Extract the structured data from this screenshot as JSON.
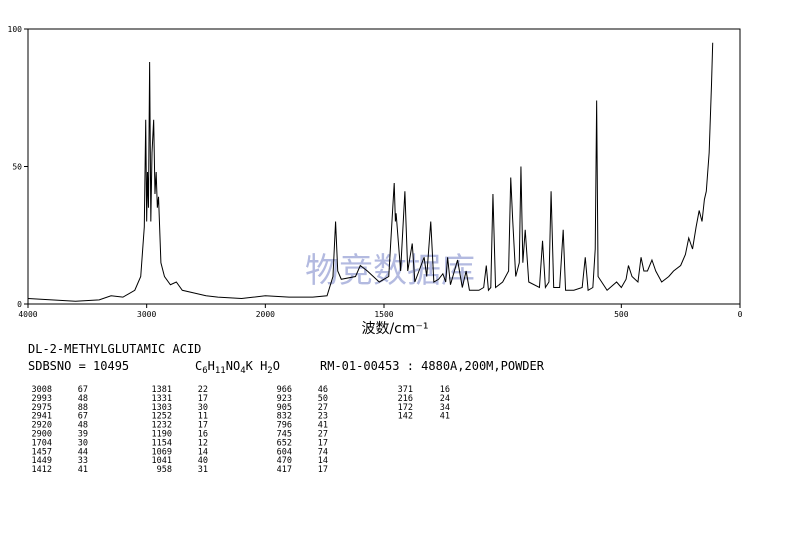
{
  "chart_data": {
    "type": "line",
    "color": "#000000",
    "xlabel": "波数/cm⁻¹",
    "xlim": [
      4000,
      0
    ],
    "x_scale_break": 2000,
    "xticks": [
      4000,
      3000,
      2000,
      1500,
      500,
      0
    ],
    "ylim": [
      0,
      100
    ],
    "yticks": [
      0,
      50,
      100
    ],
    "x": [
      4000,
      3800,
      3600,
      3400,
      3300,
      3200,
      3100,
      3050,
      3020,
      3008,
      3000,
      2993,
      2985,
      2975,
      2965,
      2955,
      2941,
      2930,
      2920,
      2910,
      2900,
      2880,
      2850,
      2800,
      2750,
      2700,
      2600,
      2500,
      2400,
      2200,
      2100,
      2000,
      1900,
      1800,
      1740,
      1715,
      1704,
      1695,
      1680,
      1620,
      1600,
      1570,
      1520,
      1480,
      1457,
      1452,
      1449,
      1430,
      1412,
      1400,
      1381,
      1370,
      1331,
      1320,
      1303,
      1290,
      1270,
      1252,
      1240,
      1232,
      1220,
      1190,
      1170,
      1154,
      1140,
      1100,
      1080,
      1069,
      1060,
      1050,
      1041,
      1030,
      1000,
      975,
      966,
      958,
      945,
      930,
      923,
      915,
      905,
      890,
      845,
      832,
      820,
      805,
      796,
      785,
      760,
      745,
      735,
      700,
      665,
      652,
      640,
      620,
      610,
      604,
      598,
      560,
      520,
      500,
      480,
      470,
      455,
      430,
      417,
      405,
      390,
      371,
      355,
      330,
      300,
      280,
      250,
      230,
      216,
      200,
      185,
      172,
      160,
      150,
      142,
      130,
      120,
      115
    ],
    "values": [
      2,
      1.5,
      1,
      1.5,
      3,
      2.5,
      5,
      10,
      28,
      67,
      30,
      48,
      35,
      88,
      30,
      55,
      67,
      40,
      48,
      35,
      39,
      15,
      10,
      7,
      8,
      5,
      4,
      3,
      2.5,
      2,
      2.5,
      3,
      2.5,
      2.5,
      3,
      10,
      30,
      12,
      9,
      10,
      14,
      12,
      8,
      10,
      44,
      30,
      33,
      12,
      41,
      12,
      22,
      8,
      17,
      10,
      30,
      8,
      9,
      11,
      8,
      17,
      7,
      16,
      6,
      12,
      5,
      5,
      6,
      14,
      5,
      6,
      40,
      6,
      8,
      12,
      46,
      31,
      10,
      15,
      50,
      15,
      27,
      8,
      6,
      23,
      6,
      8,
      41,
      6,
      6,
      27,
      5,
      5,
      6,
      17,
      5,
      6,
      20,
      74,
      10,
      5,
      8,
      6,
      9,
      14,
      10,
      8,
      17,
      12,
      12,
      16,
      12,
      8,
      10,
      12,
      14,
      18,
      24,
      20,
      28,
      34,
      30,
      38,
      41,
      55,
      80,
      95
    ]
  },
  "watermark": "物竞数据库",
  "sample": {
    "name": "DL-2-METHYLGLUTAMIC ACID",
    "sdbsno": "SDBSNO = 10495",
    "formula": [
      {
        "t": "C"
      },
      {
        "s": "6"
      },
      {
        "t": "H"
      },
      {
        "s": "11"
      },
      {
        "t": "NO"
      },
      {
        "s": "4"
      },
      {
        "t": "K"
      },
      {
        "t": " H"
      },
      {
        "s": "2"
      },
      {
        "t": "O"
      }
    ],
    "conditions": "RM-01-00453 : 4880A,200M,POWDER",
    "peaks": [
      [
        3008,
        67
      ],
      [
        2993,
        48
      ],
      [
        2975,
        88
      ],
      [
        2941,
        67
      ],
      [
        2920,
        48
      ],
      [
        2900,
        39
      ],
      [
        1704,
        30
      ],
      [
        1457,
        44
      ],
      [
        1449,
        33
      ],
      [
        1412,
        41
      ],
      [
        1381,
        22
      ],
      [
        1331,
        17
      ],
      [
        1303,
        30
      ],
      [
        1252,
        11
      ],
      [
        1232,
        17
      ],
      [
        1190,
        16
      ],
      [
        1154,
        12
      ],
      [
        1069,
        14
      ],
      [
        1041,
        40
      ],
      [
        958,
        31
      ],
      [
        966,
        46
      ],
      [
        923,
        50
      ],
      [
        905,
        27
      ],
      [
        832,
        23
      ],
      [
        796,
        41
      ],
      [
        745,
        27
      ],
      [
        652,
        17
      ],
      [
        604,
        74
      ],
      [
        470,
        14
      ],
      [
        417,
        17
      ],
      [
        371,
        16
      ],
      [
        216,
        24
      ],
      [
        172,
        34
      ],
      [
        142,
        41
      ]
    ]
  }
}
